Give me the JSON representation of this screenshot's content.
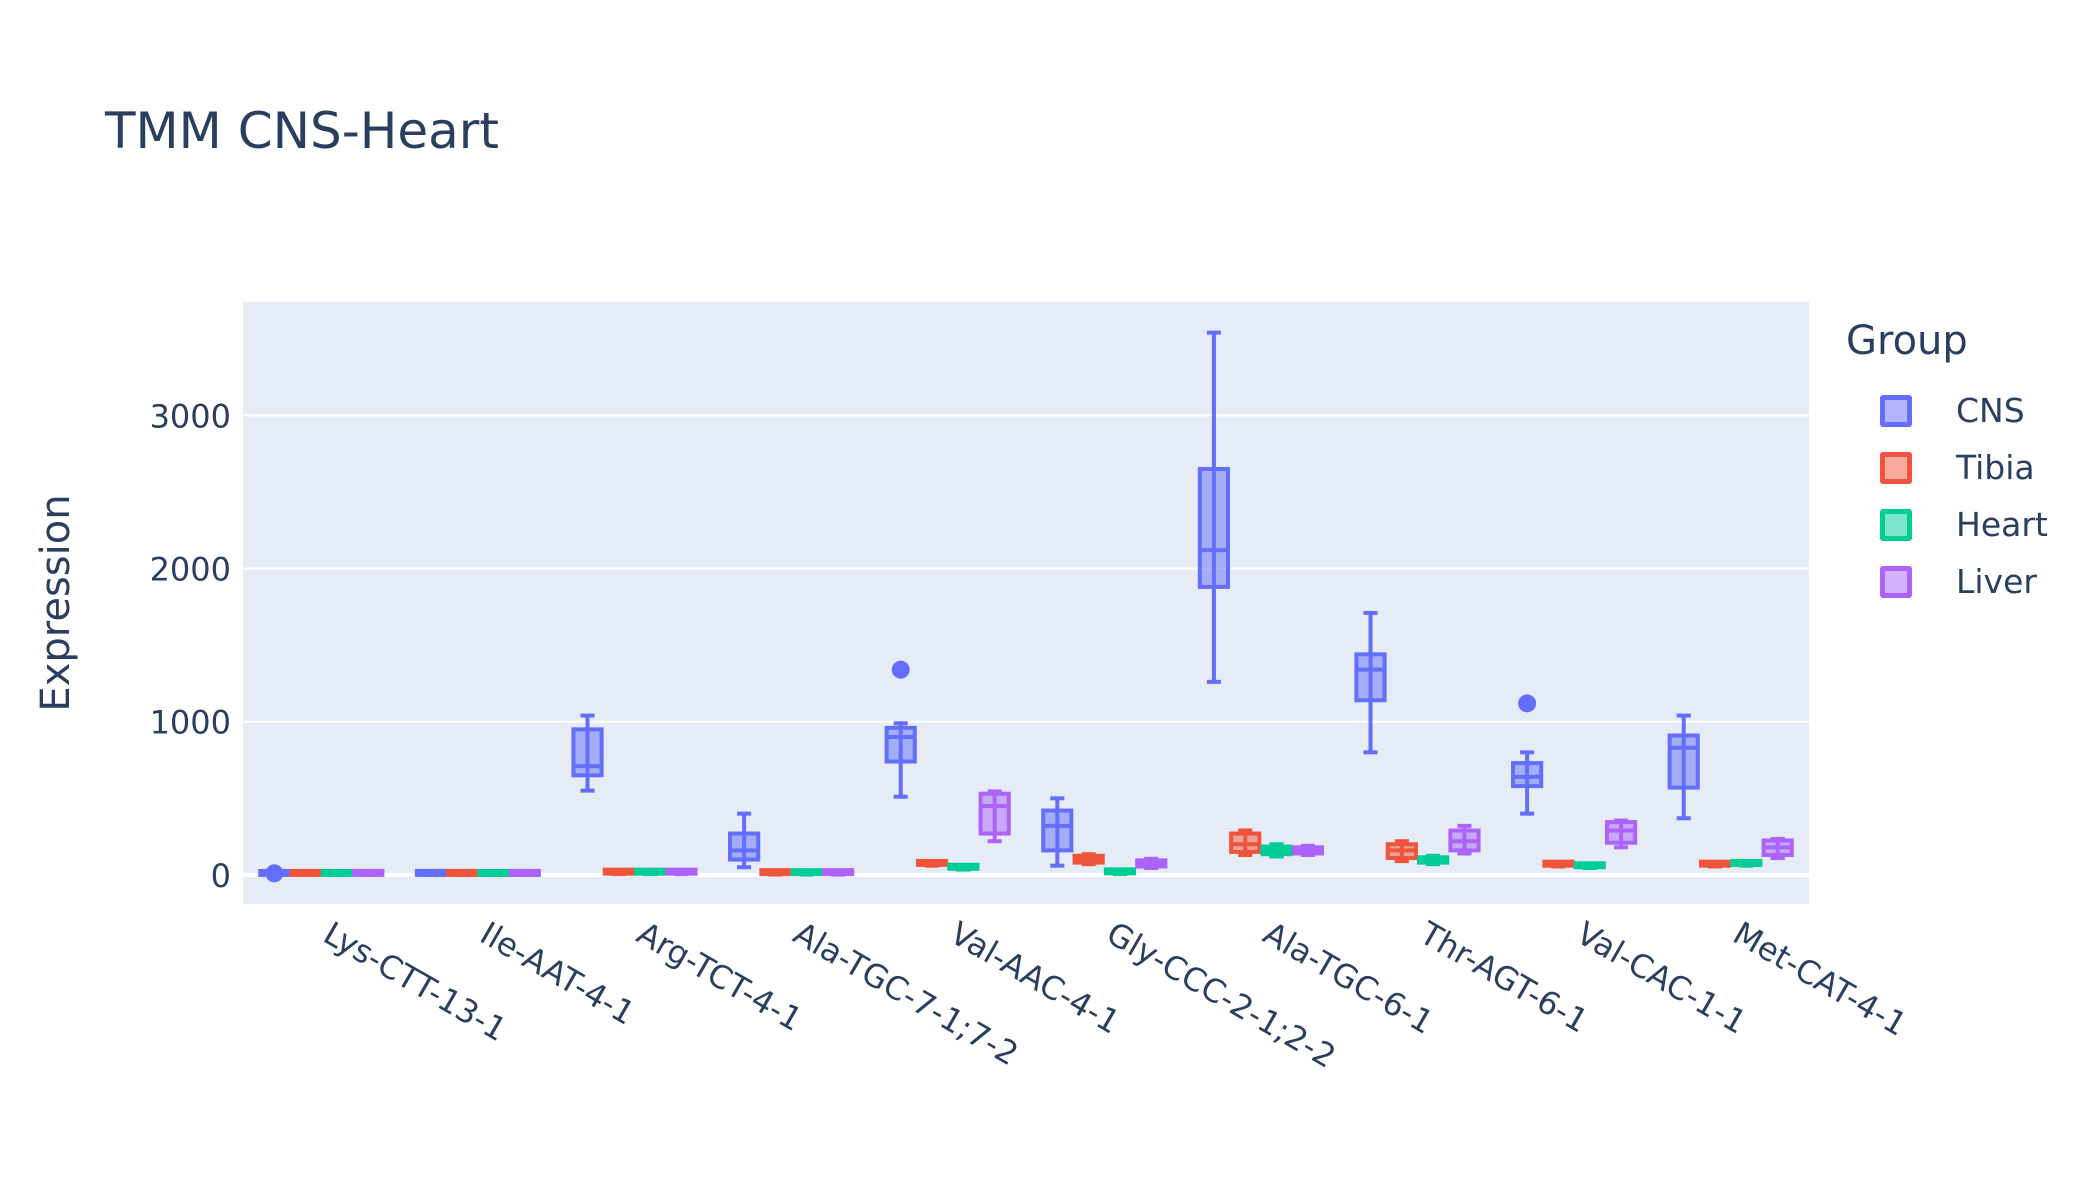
{
  "chart_data": {
    "type": "box",
    "title": "TMM CNS-Heart",
    "xlabel": "",
    "ylabel": "Expression",
    "ylim": [
      -190,
      3740
    ],
    "yticks": [
      0,
      1000,
      2000,
      3000
    ],
    "grid": true,
    "legend": {
      "title": "Group",
      "placement": "right"
    },
    "categories": [
      "Lys-CTT-13-1",
      "Ile-AAT-4-1",
      "Arg-TCT-4-1",
      "Ala-TGC-7-1;7-2",
      "Val-AAC-4-1",
      "Gly-CCC-2-1;2-2",
      "Ala-TGC-6-1",
      "Thr-AGT-6-1",
      "Val-CAC-1-1",
      "Met-CAT-4-1"
    ],
    "series": [
      {
        "name": "CNS",
        "color": "#636efa",
        "boxes": [
          {
            "min": 0,
            "q1": 0,
            "median": 2,
            "q3": 5,
            "max": 10,
            "outliers": [
              10
            ]
          },
          {
            "min": 0,
            "q1": 0,
            "median": 0,
            "q3": 0,
            "max": 0,
            "outliers": []
          },
          {
            "min": 550,
            "q1": 650,
            "median": 710,
            "q3": 950,
            "max": 1040,
            "outliers": []
          },
          {
            "min": 50,
            "q1": 100,
            "median": 160,
            "q3": 270,
            "max": 400,
            "outliers": []
          },
          {
            "min": 510,
            "q1": 740,
            "median": 900,
            "q3": 960,
            "max": 990,
            "outliers": [
              1340
            ]
          },
          {
            "min": 60,
            "q1": 160,
            "median": 320,
            "q3": 420,
            "max": 500,
            "outliers": []
          },
          {
            "min": 1260,
            "q1": 1880,
            "median": 2120,
            "q3": 2650,
            "max": 3540,
            "outliers": []
          },
          {
            "min": 800,
            "q1": 1140,
            "median": 1340,
            "q3": 1440,
            "max": 1710,
            "outliers": []
          },
          {
            "min": 400,
            "q1": 580,
            "median": 640,
            "q3": 730,
            "max": 800,
            "outliers": [
              1120
            ]
          },
          {
            "min": 370,
            "q1": 570,
            "median": 830,
            "q3": 910,
            "max": 1040,
            "outliers": []
          }
        ]
      },
      {
        "name": "Tibia",
        "color": "#ef553b",
        "boxes": [
          {
            "min": 0,
            "q1": 0,
            "median": 2,
            "q3": 5,
            "max": 7,
            "outliers": []
          },
          {
            "min": 0,
            "q1": 0,
            "median": 0,
            "q3": 1,
            "max": 2,
            "outliers": []
          },
          {
            "min": 5,
            "q1": 8,
            "median": 14,
            "q3": 20,
            "max": 25,
            "outliers": []
          },
          {
            "min": 2,
            "q1": 5,
            "median": 10,
            "q3": 15,
            "max": 20,
            "outliers": []
          },
          {
            "min": 60,
            "q1": 65,
            "median": 72,
            "q3": 80,
            "max": 90,
            "outliers": []
          },
          {
            "min": 70,
            "q1": 80,
            "median": 100,
            "q3": 125,
            "max": 135,
            "outliers": []
          },
          {
            "min": 130,
            "q1": 150,
            "median": 200,
            "q3": 270,
            "max": 290,
            "outliers": []
          },
          {
            "min": 90,
            "q1": 110,
            "median": 160,
            "q3": 200,
            "max": 220,
            "outliers": []
          },
          {
            "min": 55,
            "q1": 60,
            "median": 70,
            "q3": 80,
            "max": 85,
            "outliers": []
          },
          {
            "min": 55,
            "q1": 60,
            "median": 70,
            "q3": 80,
            "max": 85,
            "outliers": []
          }
        ]
      },
      {
        "name": "Heart",
        "color": "#00cc96",
        "boxes": [
          {
            "min": 0,
            "q1": 0,
            "median": 2,
            "q3": 5,
            "max": 7,
            "outliers": []
          },
          {
            "min": 0,
            "q1": 0,
            "median": 0,
            "q3": 1,
            "max": 2,
            "outliers": []
          },
          {
            "min": 5,
            "q1": 8,
            "median": 14,
            "q3": 20,
            "max": 25,
            "outliers": []
          },
          {
            "min": 2,
            "q1": 5,
            "median": 10,
            "q3": 15,
            "max": 20,
            "outliers": []
          },
          {
            "min": 35,
            "q1": 40,
            "median": 48,
            "q3": 55,
            "max": 62,
            "outliers": []
          },
          {
            "min": 5,
            "q1": 10,
            "median": 20,
            "q3": 28,
            "max": 32,
            "outliers": []
          },
          {
            "min": 120,
            "q1": 135,
            "median": 160,
            "q3": 185,
            "max": 200,
            "outliers": []
          },
          {
            "min": 70,
            "q1": 80,
            "median": 100,
            "q3": 115,
            "max": 125,
            "outliers": []
          },
          {
            "min": 45,
            "q1": 50,
            "median": 58,
            "q3": 66,
            "max": 72,
            "outliers": []
          },
          {
            "min": 60,
            "q1": 65,
            "median": 72,
            "q3": 80,
            "max": 85,
            "outliers": []
          }
        ]
      },
      {
        "name": "Liver",
        "color": "#ab63fa",
        "boxes": [
          {
            "min": 0,
            "q1": 0,
            "median": 2,
            "q3": 5,
            "max": 7,
            "outliers": []
          },
          {
            "min": 0,
            "q1": 0,
            "median": 0,
            "q3": 1,
            "max": 2,
            "outliers": []
          },
          {
            "min": 5,
            "q1": 8,
            "median": 14,
            "q3": 20,
            "max": 25,
            "outliers": []
          },
          {
            "min": 2,
            "q1": 5,
            "median": 10,
            "q3": 15,
            "max": 20,
            "outliers": []
          },
          {
            "min": 220,
            "q1": 270,
            "median": 450,
            "q3": 530,
            "max": 545,
            "outliers": []
          },
          {
            "min": 45,
            "q1": 55,
            "median": 70,
            "q3": 95,
            "max": 105,
            "outliers": []
          },
          {
            "min": 130,
            "q1": 140,
            "median": 160,
            "q3": 180,
            "max": 190,
            "outliers": []
          },
          {
            "min": 140,
            "q1": 160,
            "median": 220,
            "q3": 290,
            "max": 320,
            "outliers": []
          },
          {
            "min": 180,
            "q1": 210,
            "median": 290,
            "q3": 345,
            "max": 355,
            "outliers": []
          },
          {
            "min": 110,
            "q1": 130,
            "median": 180,
            "q3": 225,
            "max": 235,
            "outliers": []
          }
        ]
      }
    ]
  }
}
